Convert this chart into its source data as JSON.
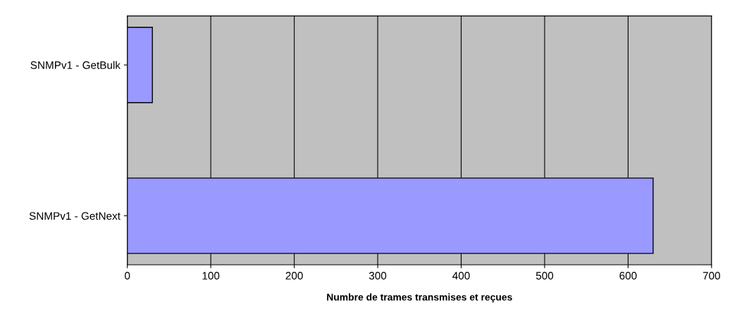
{
  "chart_data": {
    "type": "bar",
    "orientation": "horizontal",
    "xlabel": "Numbre de trames transmises et reçues",
    "categories": [
      "SNMPv1 - GetBulk",
      "SNMPv1 - GetNext"
    ],
    "values": [
      30,
      630
    ],
    "color": "#9999ff",
    "xlim": [
      0,
      700
    ],
    "xticks": [
      0,
      100,
      200,
      300,
      400,
      500,
      600,
      700
    ],
    "grid": "x",
    "legend": false
  }
}
